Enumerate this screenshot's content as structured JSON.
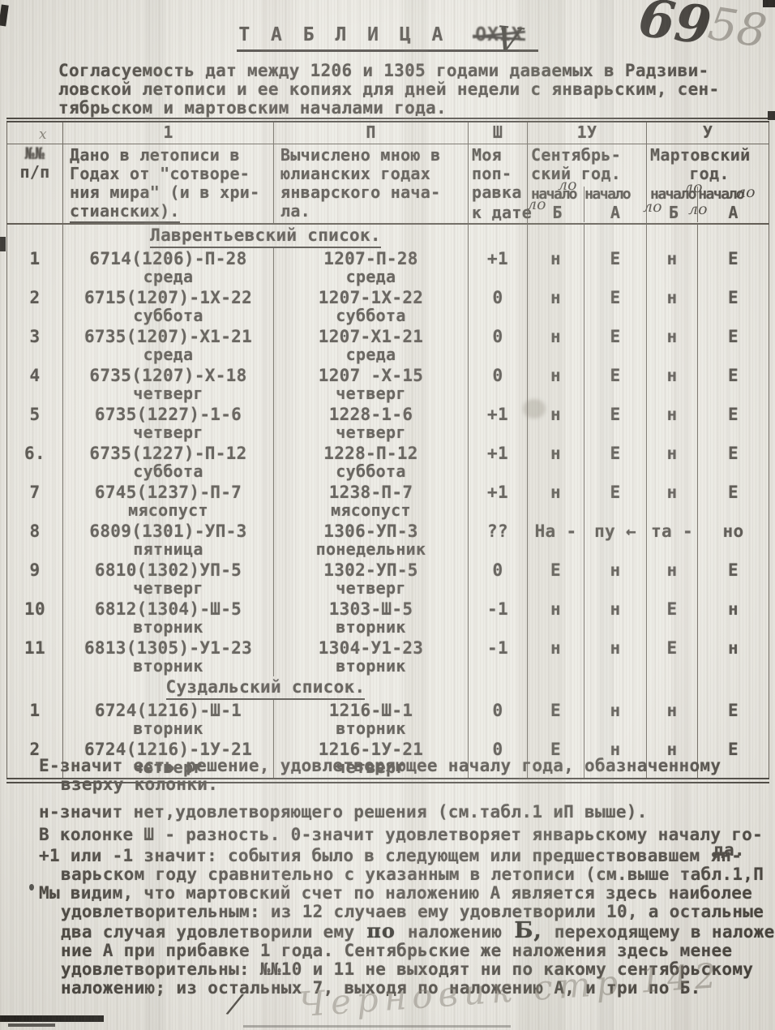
{
  "page": {
    "ink_page_number": "69",
    "pencil_page_number": "58",
    "pencil_note": "Черновик стр 142",
    "hand_x_mark": "х",
    "hand_lo": "ло",
    "hand_comma": "/"
  },
  "title": {
    "text": "Т А Б Л И Ц А",
    "struck_number": "ОХ1Х",
    "hand_number": "V"
  },
  "subtitle": {
    "l1": "Согласуемость дат между 1206 и 1305 годами даваемых в Радзиви-",
    "l2": "ловской летописи и ее копиях для дней недели с январьским, сен-",
    "l3": "тябрьском и мартовским началами года."
  },
  "table": {
    "col_numbers": {
      "c1": "1",
      "c2": "П",
      "c3": "Ш",
      "c4": "1У",
      "c5": "У"
    },
    "num_header": {
      "l1": "№№",
      "l2": "п/п"
    },
    "given_header": {
      "l1": "Дано в летописи в",
      "l2": "Годах от \"сотворе-",
      "l3": "ния мира\" (и в хри-",
      "l4": "стианских)."
    },
    "calc_header": {
      "l1": "Вычислено мною в",
      "l2": "юлианских годах",
      "l3": "январского нача-",
      "l4": "ла."
    },
    "corr_header": {
      "l1": "Моя",
      "l2": "поп-",
      "l3": "равка",
      "l4": "к дате"
    },
    "sep_header": {
      "l1": "Сентябрь-",
      "l2": "ский год.",
      "nachalo": "начало",
      "b": "Б",
      "a": "А"
    },
    "mar_header": {
      "l1": "Мартовский",
      "l2": "год.",
      "nachalo": "начало",
      "b": "Б",
      "a": "А"
    },
    "sections": [
      {
        "title": "Лаврентьевский список.",
        "rows": [
          {
            "n": "1",
            "given": "6714(1206)-П-28",
            "given_day": "среда",
            "calc": "1207-П-28",
            "calc_day": "среда",
            "corr": "+1",
            "s_b": "н",
            "s_a": "Е",
            "m_b": "н",
            "m_a": "Е"
          },
          {
            "n": "2",
            "given": "6715(1207)-1Х-22",
            "given_day": "суббота",
            "calc": "1207-1Х-22",
            "calc_day": "суббота",
            "corr": "0",
            "s_b": "н",
            "s_a": "Е",
            "m_b": "н",
            "m_a": "Е"
          },
          {
            "n": "3",
            "given": "6735(1207)-Х1-21",
            "given_day": "среда",
            "calc": "1207-Х1-21",
            "calc_day": "среда",
            "corr": "0",
            "s_b": "н",
            "s_a": "Е",
            "m_b": "н",
            "m_a": "Е"
          },
          {
            "n": "4",
            "given": "6735(1207)-Х-18",
            "given_day": "четверг",
            "calc": "1207 -Х-15",
            "calc_day": "четверг",
            "corr": "0",
            "s_b": "н",
            "s_a": "Е",
            "m_b": "н",
            "m_a": "Е"
          },
          {
            "n": "5",
            "given": "6735(1227)-1-6",
            "given_day": "четверг",
            "calc": "1228-1-6",
            "calc_day": "четверг",
            "corr": "+1",
            "s_b": "н",
            "s_a": "Е",
            "m_b": "н",
            "m_a": "Е"
          },
          {
            "n": "6.",
            "given": "6735(1227)-П-12",
            "given_day": "суббота",
            "calc": "1228-П-12",
            "calc_day": "суббота",
            "corr": "+1",
            "s_b": "н",
            "s_a": "Е",
            "m_b": "н",
            "m_a": "Е"
          },
          {
            "n": "7",
            "given": "6745(1237)-П-7",
            "given_day": "мясопуст",
            "calc": "1238-П-7",
            "calc_day": "мясопуст",
            "corr": "+1",
            "s_b": "н",
            "s_a": "Е",
            "m_b": "н",
            "m_a": "Е"
          },
          {
            "n": "8",
            "given": "6809(1301)-УП-3",
            "given_day": "пятница",
            "calc": "1306-УП-3",
            "calc_day": "понедельник",
            "corr": "??",
            "s_b": "На -",
            "s_a": "пу ←",
            "m_b": "та -",
            "m_a": "но"
          },
          {
            "n": "9",
            "given": "6810(1302)УП-5",
            "given_day": "четверг",
            "calc": "1302-УП-5",
            "calc_day": "четверг",
            "corr": "0",
            "s_b": "Е",
            "s_a": "н",
            "m_b": "н",
            "m_a": "Е"
          },
          {
            "n": "10",
            "given": "6812(1304)-Ш-5",
            "given_day": "вторник",
            "calc": "1303-Ш-5",
            "calc_day": "вторник",
            "corr": "-1",
            "s_b": "н",
            "s_a": "н",
            "m_b": "Е",
            "m_a": "н"
          },
          {
            "n": "11",
            "given": "6813(1305)-У1-23",
            "given_day": "вторник",
            "calc": "1304-У1-23",
            "calc_day": "вторник",
            "corr": "-1",
            "s_b": "н",
            "s_a": "н",
            "m_b": "Е",
            "m_a": "н"
          }
        ]
      },
      {
        "title": "Суздальский список.",
        "rows": [
          {
            "n": "1",
            "given": "6724(1216)-Ш-1",
            "given_day": "вторник",
            "calc": "1216-Ш-1",
            "calc_day": "вторник",
            "corr": "0",
            "s_b": "Е",
            "s_a": "н",
            "m_b": "н",
            "m_a": "Е"
          },
          {
            "n": "2",
            "given": "6724(1216)-1У-21",
            "given_day": "четверг",
            "calc": "1216-1У-21",
            "calc_day": "четверг",
            "corr": "0",
            "s_b": "Е",
            "s_a": "н",
            "m_b": "н",
            "m_a": "Е"
          }
        ]
      }
    ]
  },
  "legend": {
    "e1": "Е-значит есть решение, удовлетворяющее началу года, обазначенному",
    "e2": "взерху колонки.",
    "n1": "н-значит нет,удовлетворяющего решения (см.табл.1 иП  выше).",
    "k1": "В колонке Ш - разность. 0-значит удовлетворяет январьскому началу го-",
    "k2": "да.",
    "p1": "+1 или -1 значит: события было в следующем или предшествовавшем ян-",
    "p2": "варьском году сравнительно с указанным в летописи (см.выше табл.1,П"
  },
  "summary": {
    "l1": "Мы видим, что мартовский счет по наложению А является здесь наиболее",
    "l2": "удовлетворительным: из 12 случаев ему удовлетворили 10, а остальные",
    "l3_pre": "два случая удовлетворили ему ",
    "l3_hand1": "по",
    "l3_mid": " наложению ",
    "l3_hand2": "Б,",
    "l3_post": " переходящему в наложе-",
    "l4": "ние А при прибавке 1 года. Сентябрьские же наложения здесь менее",
    "l5": "удовлетворительны: №№10 и 11 не выходят ни по какому сентябрьскому",
    "l6": "наложению; из остальных 7, выходя по наложению А, и три по Б."
  }
}
